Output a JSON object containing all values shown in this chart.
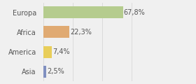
{
  "categories": [
    "Europa",
    "Africa",
    "America",
    "Asia"
  ],
  "values": [
    67.8,
    22.3,
    7.4,
    2.5
  ],
  "labels": [
    "67,8%",
    "22,3%",
    "7,4%",
    "2,5%"
  ],
  "bar_colors": [
    "#b5cc8e",
    "#e0aa72",
    "#e8ce5a",
    "#8090c0"
  ],
  "background_color": "#f0f0f0",
  "xlim": [
    0,
    100
  ],
  "label_fontsize": 7.0,
  "tick_fontsize": 7.0,
  "grid_color": "#d8d8d8",
  "grid_positions": [
    0,
    25,
    50,
    75,
    100
  ]
}
